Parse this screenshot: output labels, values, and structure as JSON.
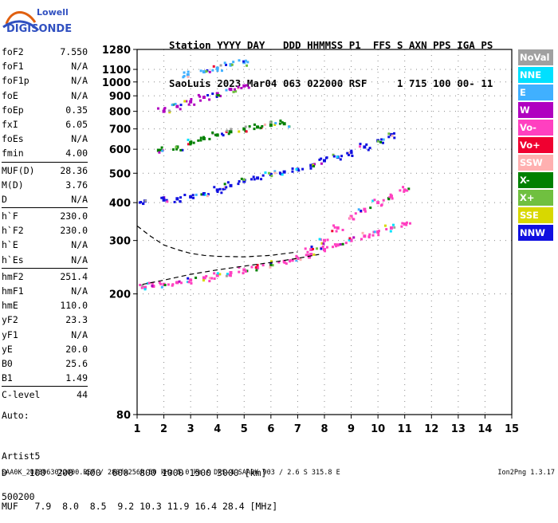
{
  "logo": {
    "line1": "Lowell",
    "line2": "DIGISONDE"
  },
  "header": {
    "row1": "Station YYYY DAY   DDD HHMMSS P1  FFS S AXN PPS IGA PS",
    "row2": "SaoLuis 2023 Mar04 063 022000 RSF     1 715 100 00- 11"
  },
  "params": {
    "group1": [
      [
        "foF2",
        "7.550"
      ],
      [
        "foF1",
        "N/A"
      ],
      [
        "foF1p",
        "N/A"
      ],
      [
        "foE",
        "N/A"
      ],
      [
        "foEp",
        "0.35"
      ],
      [
        "fxI",
        "6.05"
      ],
      [
        "foEs",
        "N/A"
      ],
      [
        "fmin",
        "4.00"
      ]
    ],
    "group2": [
      [
        "MUF(D)",
        "28.36"
      ],
      [
        "M(D)",
        "3.76"
      ],
      [
        "D",
        "N/A"
      ]
    ],
    "group3": [
      [
        "h`F",
        "230.0"
      ],
      [
        "h`F2",
        "230.0"
      ],
      [
        "h`E",
        "N/A"
      ],
      [
        "h`Es",
        "N/A"
      ]
    ],
    "group4": [
      [
        "hmF2",
        "251.4"
      ],
      [
        "hmF1",
        "N/A"
      ],
      [
        "hmE",
        "110.0"
      ],
      [
        "yF2",
        "23.3"
      ],
      [
        "yF1",
        "N/A"
      ],
      [
        "yE",
        "20.0"
      ],
      [
        "B0",
        "25.6"
      ],
      [
        "B1",
        "1.49"
      ]
    ],
    "group5": [
      [
        "C-level",
        "44"
      ]
    ]
  },
  "auto": {
    "line1": "Auto:",
    "line2": "Artist5",
    "line3": "500200"
  },
  "legend": [
    {
      "label": "NoVal",
      "color": "#a0a0a0"
    },
    {
      "label": "NNE",
      "color": "#00e0ff"
    },
    {
      "label": "E",
      "color": "#40b0ff"
    },
    {
      "label": "W",
      "color": "#b000c0"
    },
    {
      "label": "Vo-",
      "color": "#ff40c0"
    },
    {
      "label": "Vo+",
      "color": "#f00030"
    },
    {
      "label": "SSW",
      "color": "#ffb0b0"
    },
    {
      "label": "X-",
      "color": "#008000"
    },
    {
      "label": "X+",
      "color": "#70c040"
    },
    {
      "label": "SSE",
      "color": "#d8d800"
    },
    {
      "label": "NNW",
      "color": "#1010e0"
    }
  ],
  "dmuf": {
    "drow": "D    100  200  400  600  800 1000 1500 3000 [km]",
    "mrow": "MUF   7.9  8.0  8.5  9.2 10.3 11.9 16.4 28.4 [MHz]"
  },
  "footer": {
    "left": "SAA0K_2023063022000.RSF / 280fx256h 50 kHz 5.0 km / DPS-4 SAA0K 903 / 2.6 S 315.8 E",
    "right": "Ion2Png 1.3.17"
  },
  "chart_data": {
    "type": "scatter",
    "title": "",
    "xlabel": "",
    "ylabel": "",
    "xlim": [
      1,
      15
    ],
    "ylim": [
      80,
      1280
    ],
    "xticks": [
      1,
      2,
      3,
      4,
      5,
      6,
      7,
      8,
      9,
      10,
      11,
      12,
      13,
      14,
      15
    ],
    "yticks": [
      80,
      200,
      300,
      400,
      500,
      600,
      700,
      800,
      900,
      1000,
      1100,
      1280
    ],
    "y_scale": "log",
    "grid": true,
    "series": [
      {
        "color": "#ff40c0",
        "points": [
          [
            1.3,
            210
          ],
          [
            1.6,
            212
          ],
          [
            2.0,
            215
          ],
          [
            2.5,
            218
          ],
          [
            3.0,
            222
          ],
          [
            3.5,
            226
          ],
          [
            4.0,
            230
          ],
          [
            4.5,
            235
          ],
          [
            5.0,
            240
          ],
          [
            5.5,
            244
          ],
          [
            6.0,
            250
          ],
          [
            6.5,
            256
          ],
          [
            7.0,
            262
          ],
          [
            7.5,
            270
          ],
          [
            8.0,
            280
          ],
          [
            8.5,
            290
          ],
          [
            9.0,
            300
          ],
          [
            9.5,
            310
          ],
          [
            10.0,
            320
          ],
          [
            10.5,
            330
          ],
          [
            11.0,
            340
          ]
        ]
      },
      {
        "color": "#1010e0",
        "points": [
          [
            1.3,
            405
          ],
          [
            2.0,
            408
          ],
          [
            2.5,
            412
          ],
          [
            3.0,
            418
          ],
          [
            3.5,
            428
          ],
          [
            4.0,
            440
          ],
          [
            4.5,
            455
          ],
          [
            5.0,
            470
          ],
          [
            5.5,
            482
          ],
          [
            6.0,
            495
          ],
          [
            6.5,
            505
          ],
          [
            7.0,
            515
          ],
          [
            7.5,
            530
          ],
          [
            8.0,
            550
          ],
          [
            8.5,
            565
          ],
          [
            9.0,
            585
          ],
          [
            9.5,
            610
          ],
          [
            10.0,
            640
          ],
          [
            10.5,
            670
          ]
        ]
      },
      {
        "color": "#008000",
        "points": [
          [
            1.8,
            595
          ],
          [
            2.5,
            610
          ],
          [
            3.0,
            630
          ],
          [
            3.5,
            650
          ],
          [
            4.0,
            668
          ],
          [
            4.5,
            685
          ],
          [
            5.0,
            700
          ],
          [
            5.5,
            710
          ],
          [
            6.0,
            720
          ],
          [
            6.5,
            728
          ]
        ]
      },
      {
        "color": "#b000c0",
        "points": [
          [
            2.0,
            800
          ],
          [
            2.5,
            830
          ],
          [
            3.0,
            860
          ],
          [
            3.5,
            890
          ],
          [
            4.0,
            915
          ],
          [
            4.5,
            945
          ],
          [
            5.0,
            970
          ]
        ]
      },
      {
        "color": "#40b0ff",
        "points": [
          [
            2.9,
            1055
          ],
          [
            3.5,
            1080
          ],
          [
            4.0,
            1110
          ],
          [
            4.5,
            1140
          ],
          [
            5.0,
            1160
          ]
        ]
      },
      {
        "color": "#ff40c0",
        "points": [
          [
            7.5,
            280
          ],
          [
            8.0,
            300
          ],
          [
            8.5,
            330
          ],
          [
            9.0,
            360
          ],
          [
            9.5,
            380
          ],
          [
            10.0,
            400
          ],
          [
            10.5,
            420
          ],
          [
            11.0,
            440
          ]
        ]
      }
    ],
    "dashed_curves": [
      {
        "color": "#000000",
        "points": [
          [
            1.0,
            335
          ],
          [
            1.5,
            310
          ],
          [
            2.0,
            290
          ],
          [
            2.5,
            280
          ],
          [
            3.0,
            272
          ],
          [
            3.5,
            268
          ],
          [
            4.0,
            266
          ],
          [
            5.0,
            265
          ],
          [
            6.0,
            268
          ],
          [
            7.0,
            275
          ]
        ]
      },
      {
        "color": "#000000",
        "points": [
          [
            1.2,
            215
          ],
          [
            2.0,
            222
          ],
          [
            3.0,
            232
          ],
          [
            4.0,
            240
          ],
          [
            5.0,
            247
          ],
          [
            6.0,
            254
          ],
          [
            7.0,
            262
          ],
          [
            7.8,
            270
          ]
        ]
      }
    ]
  }
}
